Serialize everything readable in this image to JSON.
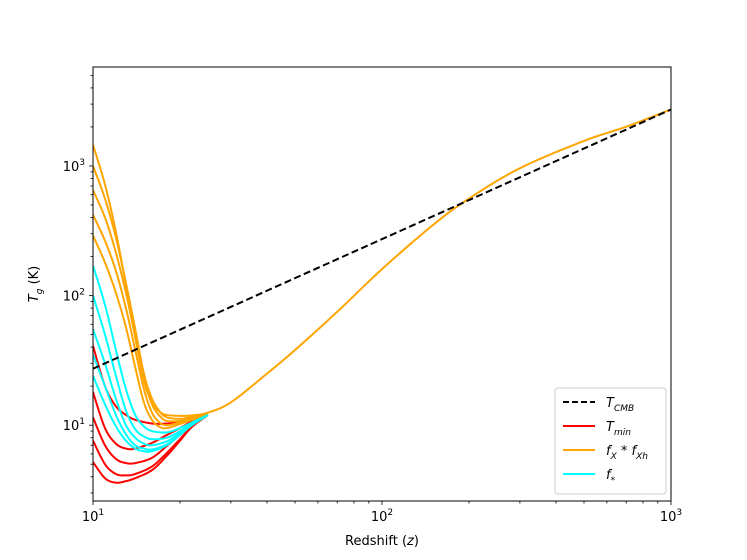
{
  "chart_data": {
    "type": "line",
    "title": "",
    "xlabel": "Redshift (z)",
    "ylabel": "T_g (K)",
    "x_scale": "log",
    "y_scale": "log",
    "xlim": [
      10,
      1000
    ],
    "ylim": [
      2.6,
      5800
    ],
    "x_ticks": [
      {
        "value": 10,
        "label": "10^1"
      },
      {
        "value": 100,
        "label": "10^2"
      },
      {
        "value": 1000,
        "label": "10^3"
      }
    ],
    "y_ticks": [
      {
        "value": 10,
        "label": "10^1"
      },
      {
        "value": 100,
        "label": "10^2"
      },
      {
        "value": 1000,
        "label": "10^3"
      }
    ],
    "grid": false,
    "legend_position": "lower-right",
    "legend": [
      {
        "label": "T_CMB",
        "color": "#000000",
        "style": "dashed"
      },
      {
        "label": "T_min",
        "color": "#ff0000",
        "style": "solid"
      },
      {
        "label": "f_X * f_Xh",
        "color": "#ffa500",
        "style": "solid"
      },
      {
        "label": "f_*",
        "color": "#00ffff",
        "style": "solid"
      }
    ],
    "series": [
      {
        "group": "T_CMB",
        "color": "#000000",
        "dashed": true,
        "x": [
          10,
          1000
        ],
        "y": [
          27.25,
          2727
        ]
      },
      {
        "group": "T_min",
        "color": "#ff0000",
        "x": [
          10,
          11,
          12,
          13,
          14,
          16,
          18,
          20,
          22,
          25
        ],
        "y": [
          41,
          20,
          14,
          12,
          11,
          10.3,
          10.3,
          10.6,
          11.2,
          12
        ]
      },
      {
        "group": "T_min",
        "color": "#ff0000",
        "x": [
          10,
          11,
          12,
          13,
          14,
          16,
          18,
          20,
          22,
          25
        ],
        "y": [
          18,
          9.5,
          7.2,
          6.6,
          6.6,
          7.3,
          8.4,
          9.5,
          10.7,
          12
        ]
      },
      {
        "group": "T_min",
        "color": "#ff0000",
        "x": [
          10,
          11,
          12,
          13,
          14,
          16,
          18,
          20,
          22,
          25
        ],
        "y": [
          11.5,
          7.0,
          5.5,
          5.1,
          5.1,
          5.6,
          6.9,
          8.4,
          10.0,
          12
        ]
      },
      {
        "group": "T_min",
        "color": "#ff0000",
        "x": [
          10,
          11,
          12,
          13,
          14,
          16,
          18,
          20,
          22,
          25
        ],
        "y": [
          7.6,
          5.0,
          4.2,
          4.1,
          4.2,
          4.8,
          6.1,
          7.8,
          9.8,
          12
        ]
      },
      {
        "group": "T_min",
        "color": "#ff0000",
        "x": [
          10,
          11,
          12,
          13,
          14,
          16,
          18,
          20,
          22,
          25
        ],
        "y": [
          5.2,
          3.9,
          3.6,
          3.7,
          3.9,
          4.5,
          5.8,
          7.6,
          9.7,
          12
        ]
      },
      {
        "group": "f_*",
        "color": "#00ffff",
        "x": [
          10,
          11,
          12,
          13,
          14,
          15,
          16,
          18,
          20,
          22,
          25
        ],
        "y": [
          170,
          85,
          38,
          19,
          12,
          9.8,
          9.0,
          8.8,
          9.5,
          10.5,
          12
        ]
      },
      {
        "group": "f_*",
        "color": "#00ffff",
        "x": [
          10,
          11,
          12,
          13,
          14,
          15,
          16,
          18,
          20,
          22,
          25
        ],
        "y": [
          100,
          50,
          24,
          13,
          9.3,
          8.2,
          7.8,
          8.0,
          9.0,
          10.3,
          12
        ]
      },
      {
        "group": "f_*",
        "color": "#00ffff",
        "x": [
          10,
          11,
          12,
          13,
          14,
          15,
          16,
          18,
          20,
          22,
          25
        ],
        "y": [
          55,
          30,
          16,
          10,
          8.0,
          7.2,
          7.0,
          7.5,
          8.7,
          10.2,
          12
        ]
      },
      {
        "group": "f_*",
        "color": "#00ffff",
        "x": [
          10,
          11,
          12,
          13,
          14,
          15,
          16,
          18,
          20,
          22,
          25
        ],
        "y": [
          35,
          20,
          12,
          8.5,
          7.0,
          6.6,
          6.5,
          7.1,
          8.5,
          10.1,
          12
        ]
      },
      {
        "group": "f_*",
        "color": "#00ffff",
        "x": [
          10,
          11,
          12,
          13,
          14,
          15,
          16,
          18,
          20,
          22,
          25
        ],
        "y": [
          24,
          14.5,
          9.8,
          7.6,
          6.6,
          6.3,
          6.3,
          7.0,
          8.4,
          10.0,
          12
        ]
      },
      {
        "group": "f_X * f_Xh",
        "color": "#ffa500",
        "x": [
          10,
          11,
          12,
          13,
          14,
          15,
          16,
          17,
          18,
          20,
          22,
          25,
          30,
          40,
          50,
          70,
          100,
          150,
          200,
          300,
          500,
          700,
          1000
        ],
        "y": [
          1450,
          720,
          310,
          120,
          48,
          22,
          15,
          12.7,
          12.0,
          11.8,
          11.9,
          12.5,
          15,
          25,
          38,
          75,
          160,
          350,
          560,
          960,
          1560,
          2010,
          2727
        ]
      },
      {
        "group": "f_X * f_Xh",
        "color": "#ffa500",
        "x": [
          10,
          11,
          12,
          13,
          14,
          15,
          16,
          17,
          18,
          20,
          22,
          25
        ],
        "y": [
          1000,
          560,
          280,
          125,
          55,
          25,
          16,
          12.8,
          11.5,
          11.2,
          11.6,
          12.3
        ]
      },
      {
        "group": "f_X * f_Xh",
        "color": "#ffa500",
        "x": [
          10,
          11,
          12,
          13,
          14,
          15,
          16,
          17,
          18,
          20,
          22,
          25
        ],
        "y": [
          650,
          400,
          215,
          105,
          48,
          23,
          14.5,
          11.8,
          10.8,
          10.8,
          11.4,
          12.2
        ]
      },
      {
        "group": "f_X * f_Xh",
        "color": "#ffa500",
        "x": [
          10,
          11,
          12,
          13,
          14,
          15,
          16,
          17,
          18,
          20,
          22,
          25
        ],
        "y": [
          420,
          265,
          155,
          80,
          38,
          19,
          12.5,
          10.5,
          10.0,
          10.5,
          11.2,
          12.1
        ]
      },
      {
        "group": "f_X * f_Xh",
        "color": "#ffa500",
        "x": [
          10,
          11,
          12,
          13,
          14,
          15,
          16,
          17,
          18,
          20,
          22,
          25
        ],
        "y": [
          290,
          180,
          105,
          57,
          28,
          15,
          11.0,
          9.7,
          9.5,
          10.2,
          11.0,
          12.0
        ]
      }
    ]
  }
}
